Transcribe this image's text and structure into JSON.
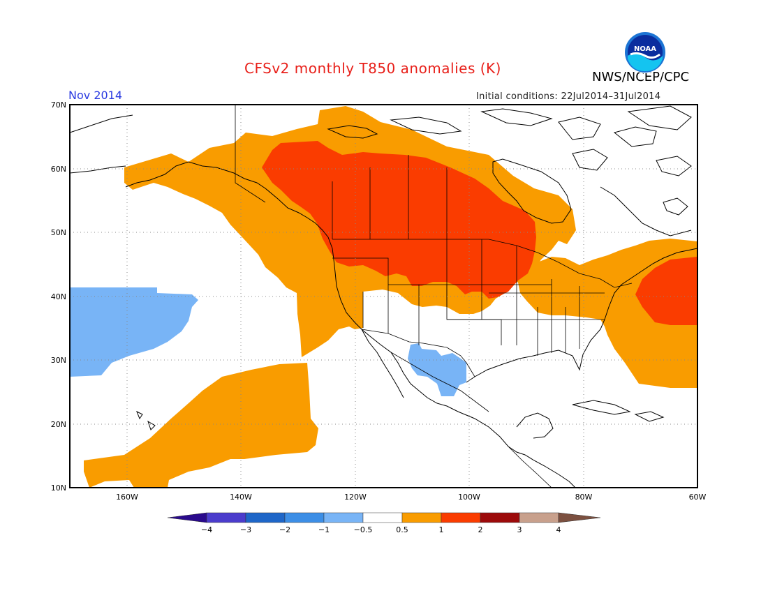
{
  "header": {
    "title": "CFSv2 monthly T850 anomalies (K)",
    "agency": "NWS/NCEP/CPC",
    "logo_text": "NOAA",
    "month": "Nov 2014",
    "initial_conditions": "Initial conditions: 22Jul2014–31Jul2014"
  },
  "map": {
    "lon_range": [
      -170,
      -60
    ],
    "lat_range": [
      10,
      70
    ],
    "lat_labels": [
      "10N",
      "20N",
      "30N",
      "40N",
      "50N",
      "60N",
      "70N"
    ],
    "lon_labels": [
      "160W",
      "140W",
      "120W",
      "100W",
      "80W",
      "60W"
    ]
  },
  "colorbar": {
    "tick_labels": [
      "−4",
      "−3",
      "−2",
      "−1",
      "−0.5",
      "0.5",
      "1",
      "2",
      "3",
      "4"
    ],
    "colors": {
      "lt_-4": "#2a0a8c",
      "-4_-3": "#4b3ccc",
      "-3_-2": "#1e66c8",
      "-2_-1": "#3c8ee6",
      "-1_-0.5": "#78b4f6",
      "-0.5_0.5": "#ffffff",
      "0.5_1": "#f99c00",
      "1_2": "#fa3c00",
      "2_3": "#9c0a0a",
      "3_4": "#c8a08c",
      "gt_4": "#7c5040"
    }
  },
  "anomaly_regions": [
    {
      "name": "western-canada-orange",
      "range": "0.5 to 1"
    },
    {
      "name": "central-canada-red",
      "range": "1 to 2"
    },
    {
      "name": "northeast-pacific-orange",
      "range": "0.5 to 1"
    },
    {
      "name": "subtropical-pacific-orange",
      "range": "0.5 to 1"
    },
    {
      "name": "western-atlantic-red",
      "range": "1 to 2"
    },
    {
      "name": "central-pacific-blue",
      "range": "-1 to -0.5"
    },
    {
      "name": "northern-mexico-blue",
      "range": "-1 to -0.5"
    }
  ]
}
